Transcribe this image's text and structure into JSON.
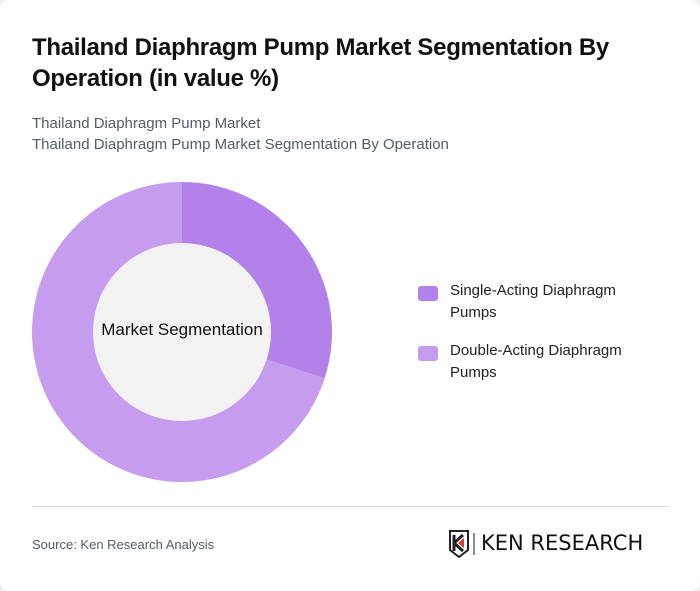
{
  "header": {
    "title": "Thailand Diaphragm Pump Market Segmentation By Operation (in value %)",
    "subtitle_line1": "Thailand Diaphragm Pump Market",
    "subtitle_line2": "Thailand Diaphragm Pump Market Segmentation By Operation"
  },
  "chart": {
    "center_label": "Market Segmentation",
    "legend": [
      {
        "label": "Single-Acting Diaphragm Pumps",
        "color": "#b381ea"
      },
      {
        "label": "Double-Acting Diaphragm Pumps",
        "color": "#c69cef"
      }
    ]
  },
  "footer": {
    "source": "Source: Ken Research Analysis",
    "logo_text": "KEN RESEARCH"
  },
  "chart_data": {
    "type": "pie",
    "variant": "donut",
    "title": "Thailand Diaphragm Pump Market Segmentation By Operation (in value %)",
    "subtitle": "Thailand Diaphragm Pump Market / Thailand Diaphragm Pump Market Segmentation By Operation",
    "center_label": "Market Segmentation",
    "categories": [
      "Single-Acting Diaphragm Pumps",
      "Double-Acting Diaphragm Pumps"
    ],
    "values": [
      30,
      70
    ],
    "colors": [
      "#b381ea",
      "#c69cef"
    ],
    "unit": "%",
    "legend_position": "right",
    "source": "Source: Ken Research Analysis"
  }
}
